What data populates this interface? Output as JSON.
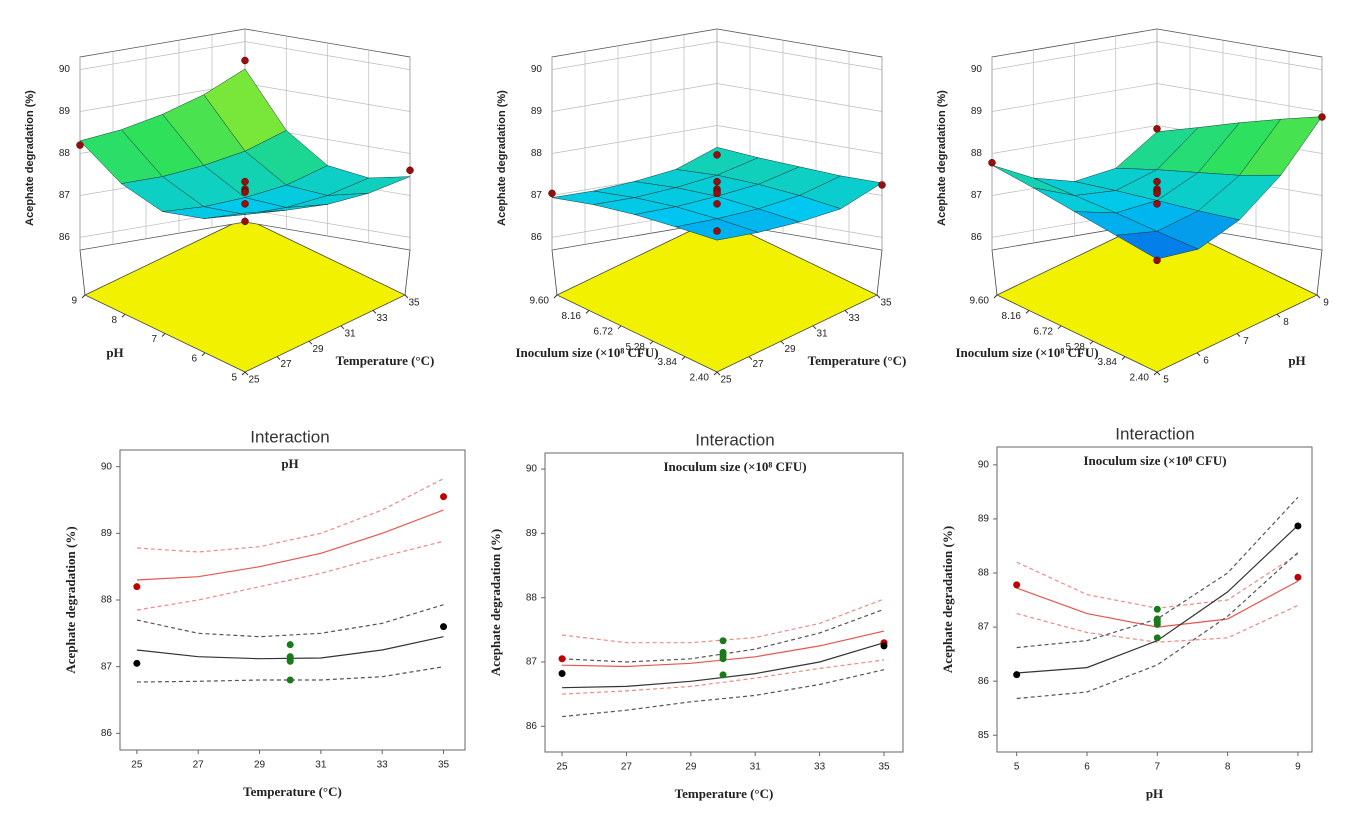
{
  "chart_data": [
    {
      "type": "surface",
      "zlabel": "Acephate degradation (%)",
      "xlabel": "Temperature (°C)",
      "ylabel": "pH",
      "xlim": [
        25,
        35
      ],
      "ylim": [
        5,
        9
      ],
      "zlim": [
        85.7,
        90.3
      ],
      "xticks": [
        25,
        27,
        29,
        31,
        33,
        35
      ],
      "yticks": [
        5,
        6,
        7,
        8,
        9
      ],
      "zticks": [
        86,
        87,
        88,
        89,
        90
      ],
      "floor_color": "#f2f200",
      "colorscale": [
        "#0a1ee0",
        "#00c8f0",
        "#2ee05a",
        "#d8ee10",
        "#ff9a10"
      ],
      "surface": {
        "x": [
          25,
          27.5,
          30,
          32.5,
          35
        ],
        "y": [
          5,
          6,
          7,
          8,
          9
        ],
        "z": [
          [
            87.25,
            87.15,
            87.12,
            87.22,
            87.45
          ],
          [
            86.95,
            86.88,
            86.88,
            87.0,
            87.25
          ],
          [
            86.95,
            86.9,
            86.95,
            87.08,
            87.38
          ],
          [
            87.45,
            87.45,
            87.55,
            87.72,
            88.05
          ],
          [
            88.3,
            88.4,
            88.6,
            88.9,
            89.35
          ]
        ]
      },
      "points": {
        "color": "#9a0d0d",
        "x": [
          25,
          25,
          35,
          35,
          30,
          30,
          30,
          30,
          30
        ],
        "y": [
          5,
          9,
          5,
          9,
          7,
          7,
          7,
          7,
          7
        ],
        "z": [
          87.05,
          88.2,
          87.6,
          89.55,
          87.33,
          87.15,
          87.1,
          87.08,
          86.8
        ]
      }
    },
    {
      "type": "surface",
      "zlabel": "Acephate degradation (%)",
      "xlabel": "Temperature (°C)",
      "ylabel": "Inoculum size (×10⁸ CFU)",
      "xlim": [
        25,
        35
      ],
      "ylim": [
        2.4,
        9.6
      ],
      "zlim": [
        85.7,
        90.3
      ],
      "xticks": [
        25,
        27,
        29,
        31,
        33,
        35
      ],
      "yticks": [
        {
          "value": 2.4,
          "label": "2.40"
        },
        3.84,
        5.28,
        6.72,
        8.16,
        {
          "value": 9.6,
          "label": "9.60"
        }
      ],
      "zticks": [
        86,
        87,
        88,
        89,
        90
      ],
      "floor_color": "#f2f200",
      "colorscale": [
        "#0a1ee0",
        "#00c8f0",
        "#2ee05a",
        "#d8ee10",
        "#ff9a10"
      ],
      "surface": {
        "x": [
          25,
          27.5,
          30,
          32.5,
          35
        ],
        "y": [
          2.4,
          4.2,
          6.0,
          7.8,
          9.6
        ],
        "z": [
          [
            86.6,
            86.62,
            86.7,
            86.85,
            87.3
          ],
          [
            86.75,
            86.78,
            86.85,
            87.0,
            87.3
          ],
          [
            86.88,
            86.9,
            86.98,
            87.1,
            87.35
          ],
          [
            86.95,
            86.95,
            87.02,
            87.15,
            87.4
          ],
          [
            86.95,
            86.94,
            87.0,
            87.12,
            87.48
          ]
        ]
      },
      "points": {
        "color": "#9a0d0d",
        "x": [
          25,
          25,
          35,
          35,
          30,
          30,
          30,
          30,
          30
        ],
        "y": [
          2.4,
          9.6,
          2.4,
          9.6,
          6.0,
          6.0,
          6.0,
          6.0,
          6.0
        ],
        "z": [
          86.82,
          87.05,
          87.25,
          87.3,
          87.33,
          87.15,
          87.1,
          87.05,
          86.8
        ]
      }
    },
    {
      "type": "surface",
      "zlabel": "Acephate degradation (%)",
      "xlabel": "pH",
      "ylabel": "Inoculum size (×10⁸ CFU)",
      "xlim": [
        5,
        9
      ],
      "ylim": [
        2.4,
        9.6
      ],
      "zlim": [
        85.7,
        90.3
      ],
      "xticks": [
        5,
        6,
        7,
        8,
        9
      ],
      "yticks": [
        {
          "value": 2.4,
          "label": "2.40"
        },
        3.84,
        5.28,
        6.72,
        8.16,
        {
          "value": 9.6,
          "label": "9.60"
        }
      ],
      "zticks": [
        86,
        87,
        88,
        89,
        90
      ],
      "floor_color": "#f2f200",
      "colorscale": [
        "#0a1ee0",
        "#00c8f0",
        "#2ee05a",
        "#d8ee10",
        "#ff9a10"
      ],
      "surface": {
        "x": [
          5,
          6,
          7,
          8,
          9
        ],
        "y": [
          2.4,
          4.2,
          6.0,
          7.8,
          9.6
        ],
        "z": [
          [
            86.15,
            86.22,
            86.75,
            87.65,
            88.88
          ],
          [
            86.55,
            86.48,
            86.8,
            87.48,
            88.65
          ],
          [
            86.95,
            86.75,
            86.88,
            87.38,
            88.4
          ],
          [
            87.35,
            87.0,
            86.95,
            87.28,
            88.12
          ],
          [
            87.72,
            87.25,
            87.0,
            87.15,
            87.85
          ]
        ]
      },
      "points": {
        "color": "#9a0d0d",
        "x": [
          5,
          5,
          9,
          9,
          7,
          7,
          7,
          7,
          7
        ],
        "y": [
          2.4,
          9.6,
          2.4,
          9.6,
          6.0,
          6.0,
          6.0,
          6.0,
          6.0
        ],
        "z": [
          86.12,
          87.78,
          88.87,
          87.92,
          87.33,
          87.15,
          87.1,
          87.05,
          86.8
        ]
      }
    },
    {
      "type": "line",
      "title": "Interaction",
      "legend_title": "pH",
      "xlabel": "Temperature (°C)",
      "ylabel": "Acephate degradation (%)",
      "xlim": [
        24.45,
        35.7
      ],
      "ylim": [
        85.75,
        90.25
      ],
      "xticks": [
        25,
        27,
        29,
        31,
        33,
        35
      ],
      "yticks": [
        86,
        87,
        88,
        89,
        90
      ],
      "x": [
        25,
        27,
        29,
        31,
        33,
        35
      ],
      "series": [
        {
          "color": "#e8554e",
          "dash": false,
          "values": [
            88.3,
            88.35,
            88.5,
            88.7,
            89.0,
            89.35
          ]
        },
        {
          "color": "#ef8a85",
          "dash": true,
          "values": [
            88.78,
            88.72,
            88.8,
            89.0,
            89.35,
            89.82
          ]
        },
        {
          "color": "#ef8a85",
          "dash": true,
          "values": [
            87.85,
            88.0,
            88.2,
            88.4,
            88.65,
            88.88
          ]
        },
        {
          "color": "#333333",
          "dash": false,
          "values": [
            87.25,
            87.15,
            87.12,
            87.13,
            87.25,
            87.45
          ]
        },
        {
          "color": "#555555",
          "dash": true,
          "values": [
            87.7,
            87.5,
            87.45,
            87.5,
            87.65,
            87.93
          ]
        },
        {
          "color": "#555555",
          "dash": true,
          "values": [
            86.77,
            86.78,
            86.8,
            86.8,
            86.85,
            87.0
          ]
        }
      ],
      "points": [
        {
          "color": "#c00000",
          "x": [
            25,
            35
          ],
          "values": [
            88.2,
            89.55
          ]
        },
        {
          "color": "#000000",
          "x": [
            25,
            35
          ],
          "values": [
            87.05,
            87.6
          ]
        },
        {
          "color": "#1a7a1a",
          "x": [
            30,
            30,
            30,
            30,
            30
          ],
          "values": [
            87.33,
            87.15,
            87.1,
            87.08,
            86.8
          ]
        }
      ]
    },
    {
      "type": "line",
      "title": "Interaction",
      "legend_title": "Inoculum size (×10⁸ CFU)",
      "xlabel": "Temperature (°C)",
      "ylabel": "Acephate degradation (%)",
      "xlim": [
        24.47,
        35.59
      ],
      "ylim": [
        85.6,
        90.25
      ],
      "xticks": [
        25,
        27,
        29,
        31,
        33,
        35
      ],
      "yticks": [
        86,
        87,
        88,
        89,
        90
      ],
      "x": [
        25,
        27,
        29,
        31,
        33,
        35
      ],
      "series": [
        {
          "color": "#e8554e",
          "dash": false,
          "values": [
            86.95,
            86.93,
            86.98,
            87.08,
            87.25,
            87.48
          ]
        },
        {
          "color": "#ef8a85",
          "dash": true,
          "values": [
            87.42,
            87.3,
            87.3,
            87.38,
            87.6,
            87.98
          ]
        },
        {
          "color": "#ef8a85",
          "dash": true,
          "values": [
            86.5,
            86.55,
            86.62,
            86.75,
            86.9,
            87.03
          ]
        },
        {
          "color": "#333333",
          "dash": false,
          "values": [
            86.6,
            86.62,
            86.7,
            86.82,
            87.0,
            87.3
          ]
        },
        {
          "color": "#555555",
          "dash": true,
          "values": [
            87.05,
            87.0,
            87.05,
            87.2,
            87.45,
            87.82
          ]
        },
        {
          "color": "#555555",
          "dash": true,
          "values": [
            86.15,
            86.25,
            86.38,
            86.48,
            86.65,
            86.88
          ]
        }
      ],
      "points": [
        {
          "color": "#c00000",
          "x": [
            25,
            35
          ],
          "values": [
            87.05,
            87.3
          ]
        },
        {
          "color": "#000000",
          "x": [
            25,
            35
          ],
          "values": [
            86.82,
            87.25
          ]
        },
        {
          "color": "#1a7a1a",
          "x": [
            30,
            30,
            30,
            30,
            30
          ],
          "values": [
            87.33,
            87.15,
            87.1,
            87.05,
            86.8
          ]
        }
      ]
    },
    {
      "type": "line",
      "title": "Interaction",
      "legend_title": "Inoculum size (×10⁸ CFU)",
      "xlabel": "pH",
      "ylabel": "Acephate degradation (%)",
      "xlim": [
        4.72,
        9.2
      ],
      "ylim": [
        84.69,
        90.33
      ],
      "xticks": [
        5,
        6,
        7,
        8,
        9
      ],
      "yticks": [
        85,
        86,
        87,
        88,
        89,
        90
      ],
      "x": [
        5,
        6,
        7,
        8,
        9
      ],
      "series": [
        {
          "color": "#e8554e",
          "dash": false,
          "values": [
            87.72,
            87.25,
            87.0,
            87.15,
            87.85
          ]
        },
        {
          "color": "#ef8a85",
          "dash": true,
          "values": [
            88.2,
            87.6,
            87.35,
            87.5,
            88.35
          ]
        },
        {
          "color": "#ef8a85",
          "dash": true,
          "values": [
            87.25,
            86.9,
            86.72,
            86.8,
            87.4
          ]
        },
        {
          "color": "#333333",
          "dash": false,
          "values": [
            86.15,
            86.25,
            86.75,
            87.65,
            88.88
          ]
        },
        {
          "color": "#555555",
          "dash": true,
          "values": [
            86.62,
            86.75,
            87.15,
            88.0,
            89.4
          ]
        },
        {
          "color": "#555555",
          "dash": true,
          "values": [
            85.68,
            85.8,
            86.3,
            87.2,
            88.38
          ]
        }
      ],
      "points": [
        {
          "color": "#c00000",
          "x": [
            5,
            9
          ],
          "values": [
            87.78,
            87.92
          ]
        },
        {
          "color": "#000000",
          "x": [
            5,
            9
          ],
          "values": [
            86.12,
            88.87
          ]
        },
        {
          "color": "#1a7a1a",
          "x": [
            7,
            7,
            7,
            7,
            7
          ],
          "values": [
            87.33,
            87.15,
            87.1,
            87.05,
            86.8
          ]
        }
      ]
    }
  ]
}
